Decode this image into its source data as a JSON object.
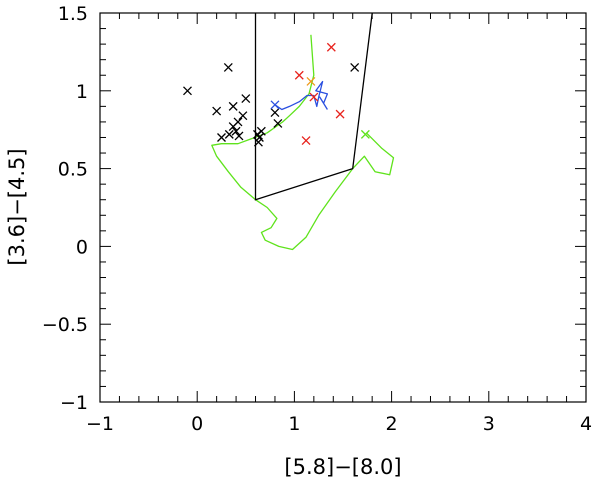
{
  "chart_data": {
    "type": "scatter",
    "xlabel": "[5.8]−[8.0]",
    "ylabel": "[3.6]−[4.5]",
    "xlim": [
      -1,
      4
    ],
    "ylim": [
      -1,
      1.5
    ],
    "x_ticks": [
      -1,
      0,
      1,
      2,
      3,
      4
    ],
    "y_ticks": [
      -1,
      -0.5,
      0,
      0.5,
      1,
      1.5
    ],
    "x_tick_labels": [
      "−1",
      "0",
      "1",
      "2",
      "3",
      "4"
    ],
    "y_tick_labels": [
      "−1",
      "−0.5",
      "0",
      "0.5",
      "1",
      "1.5"
    ],
    "grid": false,
    "colors": {
      "black": "#000000",
      "red": "#e8231d",
      "blue": "#2a4fe0",
      "green": "#5fe31c",
      "orange": "#ee9a1a"
    },
    "region_boundary": {
      "color": "#000000",
      "points": [
        [
          0.6,
          1.5
        ],
        [
          0.6,
          0.3
        ],
        [
          1.6,
          0.5
        ],
        [
          1.8,
          1.5
        ]
      ]
    },
    "series": [
      {
        "marker": "x",
        "color": "#000000",
        "points": [
          [
            -0.1,
            1.0
          ],
          [
            0.2,
            0.87
          ],
          [
            0.32,
            1.15
          ],
          [
            0.37,
            0.9
          ],
          [
            0.5,
            0.95
          ],
          [
            0.47,
            0.84
          ],
          [
            0.42,
            0.8
          ],
          [
            0.37,
            0.77
          ],
          [
            0.4,
            0.74
          ],
          [
            0.33,
            0.72
          ],
          [
            0.25,
            0.7
          ],
          [
            0.43,
            0.71
          ],
          [
            0.62,
            0.72
          ],
          [
            0.66,
            0.74
          ],
          [
            0.64,
            0.7
          ],
          [
            0.63,
            0.67
          ],
          [
            0.8,
            0.86
          ],
          [
            0.83,
            0.79
          ],
          [
            1.62,
            1.15
          ]
        ]
      },
      {
        "marker": "x",
        "color": "#e8231d",
        "points": [
          [
            1.05,
            1.1
          ],
          [
            1.38,
            1.28
          ],
          [
            1.2,
            0.96
          ],
          [
            1.47,
            0.85
          ],
          [
            1.12,
            0.68
          ]
        ]
      },
      {
        "marker": "x",
        "color": "#2a4fe0",
        "points": [
          [
            0.8,
            0.91
          ]
        ]
      },
      {
        "marker": "x",
        "color": "#5fe31c",
        "points": [
          [
            1.73,
            0.72
          ]
        ]
      },
      {
        "marker": "x",
        "color": "#ee9a1a",
        "points": [
          [
            1.17,
            1.06
          ]
        ]
      },
      {
        "type": "line",
        "color": "#5fe31c",
        "points": [
          [
            1.17,
            1.36
          ],
          [
            1.2,
            1.1
          ],
          [
            1.15,
            0.98
          ],
          [
            1.05,
            0.9
          ],
          [
            0.95,
            0.84
          ],
          [
            0.88,
            0.8
          ],
          [
            0.72,
            0.73
          ],
          [
            0.55,
            0.69
          ],
          [
            0.42,
            0.66
          ],
          [
            0.25,
            0.66
          ],
          [
            0.15,
            0.65
          ],
          [
            0.2,
            0.58
          ],
          [
            0.32,
            0.48
          ],
          [
            0.45,
            0.38
          ],
          [
            0.6,
            0.3
          ],
          [
            0.72,
            0.25
          ],
          [
            0.82,
            0.18
          ],
          [
            0.76,
            0.12
          ],
          [
            0.66,
            0.09
          ],
          [
            0.7,
            0.04
          ],
          [
            0.84,
            0.0
          ],
          [
            0.98,
            -0.02
          ],
          [
            1.12,
            0.06
          ],
          [
            1.25,
            0.2
          ],
          [
            1.42,
            0.35
          ],
          [
            1.6,
            0.5
          ],
          [
            1.72,
            0.58
          ],
          [
            1.83,
            0.48
          ],
          [
            1.98,
            0.46
          ],
          [
            2.02,
            0.57
          ],
          [
            1.9,
            0.63
          ],
          [
            1.74,
            0.73
          ]
        ]
      },
      {
        "type": "line",
        "color": "#2a4fe0",
        "points": [
          [
            0.8,
            0.91
          ],
          [
            0.87,
            0.88
          ],
          [
            0.95,
            0.9
          ],
          [
            1.05,
            0.93
          ],
          [
            1.13,
            0.97
          ],
          [
            1.2,
            0.97
          ],
          [
            1.23,
            0.9
          ],
          [
            1.25,
            0.96
          ],
          [
            1.29,
            1.06
          ],
          [
            1.22,
            1.0
          ],
          [
            1.34,
            0.98
          ],
          [
            1.3,
            0.92
          ],
          [
            1.26,
            0.96
          ],
          [
            1.34,
            0.88
          ]
        ]
      }
    ]
  }
}
